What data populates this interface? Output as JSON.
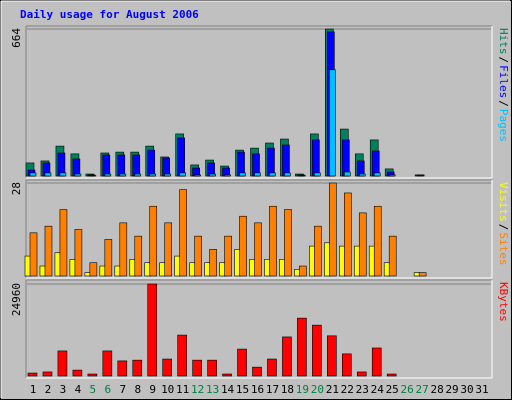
{
  "chart_data": [
    {
      "type": "bar",
      "title": "Daily usage for August 2006",
      "ylim": [
        0,
        664
      ],
      "yticks": [
        664
      ],
      "legend_separator": "/",
      "series": [
        {
          "name": "Hits",
          "color": "#00805c",
          "values": [
            59,
            68,
            135,
            100,
            9,
            104,
            108,
            108,
            135,
            86,
            190,
            50,
            72,
            45,
            117,
            126,
            149,
            167,
            9,
            190,
            664,
            212,
            100,
            163,
            32,
            0,
            5,
            0,
            0,
            0,
            0
          ]
        },
        {
          "name": "Files",
          "color": "#0000ff",
          "values": [
            27,
            59,
            104,
            77,
            5,
            95,
            95,
            95,
            117,
            81,
            172,
            36,
            59,
            36,
            108,
            100,
            126,
            140,
            5,
            163,
            651,
            163,
            68,
            113,
            18,
            0,
            5,
            0,
            0,
            0,
            0
          ]
        },
        {
          "name": "Pages",
          "color": "#00c0ff",
          "values": [
            14,
            14,
            14,
            9,
            2,
            9,
            9,
            9,
            9,
            9,
            14,
            5,
            9,
            5,
            14,
            14,
            14,
            14,
            2,
            14,
            480,
            18,
            9,
            14,
            5,
            0,
            0,
            0,
            0,
            0,
            0
          ]
        }
      ]
    },
    {
      "type": "bar",
      "ylim": [
        0,
        28
      ],
      "yticks": [
        28
      ],
      "legend_separator": "/",
      "series": [
        {
          "name": "Visits",
          "color": "#ffff00",
          "values": [
            6,
            3,
            7,
            5,
            1,
            3,
            3,
            5,
            4,
            4,
            6,
            4,
            4,
            4,
            8,
            5,
            5,
            5,
            2,
            9,
            10,
            9,
            9,
            9,
            4,
            0,
            1,
            0,
            0,
            0,
            0
          ]
        },
        {
          "name": "Sites",
          "color": "#ff8000",
          "values": [
            13,
            15,
            20,
            14,
            4,
            11,
            16,
            12,
            21,
            16,
            26,
            12,
            8,
            12,
            18,
            16,
            21,
            20,
            3,
            15,
            28,
            25,
            19,
            21,
            12,
            0,
            1,
            0,
            0,
            0,
            0
          ]
        }
      ]
    },
    {
      "type": "bar",
      "ylim": [
        0,
        24960
      ],
      "yticks": [
        24960
      ],
      "categories": [
        "1",
        "2",
        "3",
        "4",
        "5",
        "6",
        "7",
        "8",
        "9",
        "10",
        "11",
        "12",
        "13",
        "14",
        "15",
        "16",
        "17",
        "18",
        "19",
        "20",
        "21",
        "22",
        "23",
        "24",
        "25",
        "26",
        "27",
        "28",
        "29",
        "30",
        "31"
      ],
      "category_colors": [
        "#000000",
        "#000000",
        "#000000",
        "#000000",
        "#008040",
        "#008040",
        "#000000",
        "#000000",
        "#000000",
        "#000000",
        "#000000",
        "#008040",
        "#008040",
        "#000000",
        "#000000",
        "#000000",
        "#000000",
        "#000000",
        "#008040",
        "#008040",
        "#000000",
        "#000000",
        "#000000",
        "#000000",
        "#000000",
        "#008040",
        "#008040",
        "#000000",
        "#000000",
        "#000000",
        "#000000"
      ],
      "series": [
        {
          "name": "KBytes",
          "color": "#ff0000",
          "values": [
            800,
            1100,
            6800,
            1600,
            540,
            6800,
            4100,
            4300,
            24960,
            4600,
            11100,
            4300,
            4300,
            540,
            7300,
            2400,
            4600,
            10600,
            15700,
            13800,
            10900,
            6000,
            1100,
            7600,
            540,
            0,
            0,
            0,
            0,
            0,
            0
          ]
        }
      ]
    }
  ]
}
